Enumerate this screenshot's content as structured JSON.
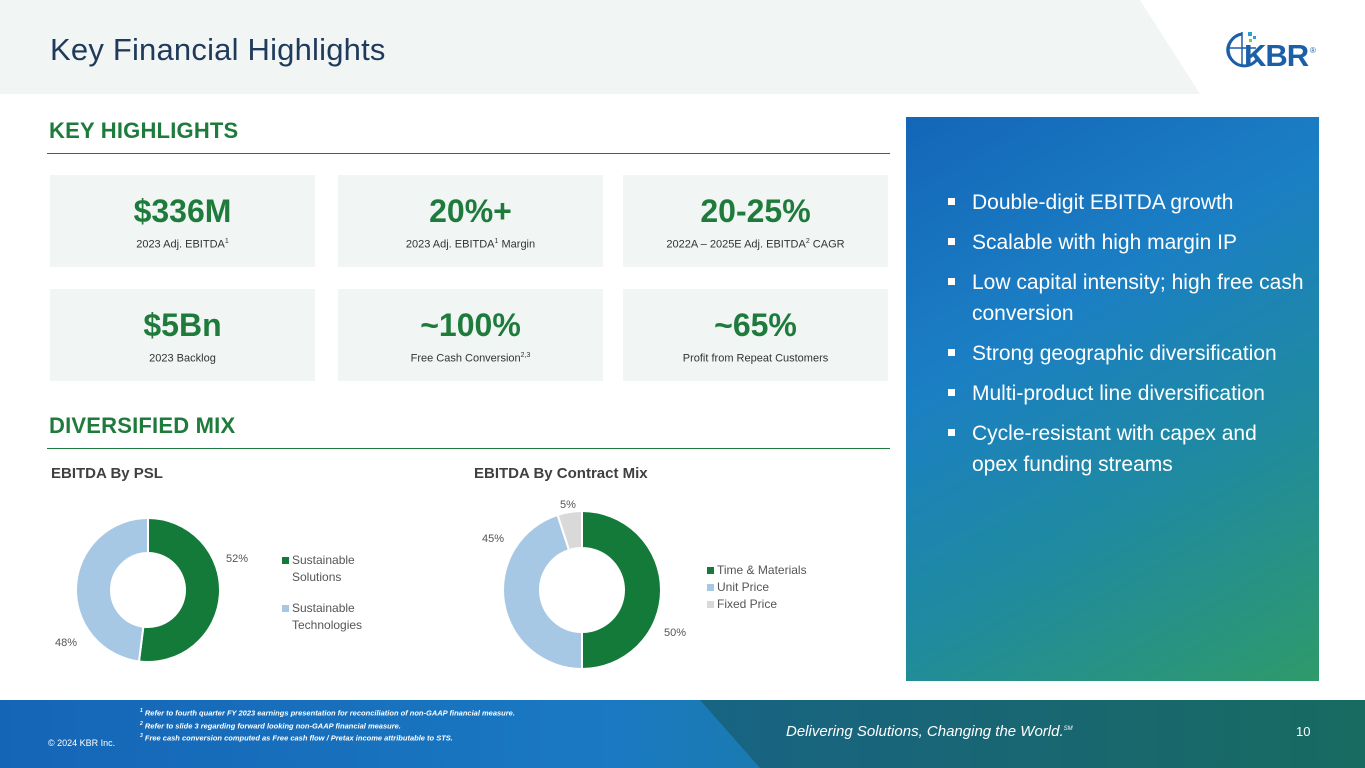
{
  "header": {
    "title": "Key Financial Highlights"
  },
  "logo": {
    "text": "KBR",
    "mark": "®"
  },
  "sections": {
    "highlights": "KEY HIGHLIGHTS",
    "mix": "DIVERSIFIED MIX"
  },
  "kpis": [
    {
      "value": "$336M",
      "label": "2023 Adj. EBITDA",
      "sup": "1",
      "label_tail": ""
    },
    {
      "value": "20%+",
      "label": "2023 Adj. EBITDA",
      "sup": "1",
      "label_tail": " Margin"
    },
    {
      "value": "20-25%",
      "label": "2022A – 2025E Adj. EBITDA",
      "sup": "2",
      "label_tail": " CAGR"
    },
    {
      "value": "$5Bn",
      "label": "2023 Backlog",
      "sup": "",
      "label_tail": ""
    },
    {
      "value": "~100%",
      "label": "Free Cash Conversion",
      "sup": "2,3",
      "label_tail": ""
    },
    {
      "value": "~65%",
      "label": "Profit from Repeat Customers",
      "sup": "",
      "label_tail": ""
    }
  ],
  "chart_data": [
    {
      "type": "pie",
      "title": "EBITDA By PSL",
      "categories": [
        "Sustainable Solutions",
        "Sustainable Technologies"
      ],
      "values": [
        52,
        48
      ],
      "value_labels": [
        "52%",
        "48%"
      ],
      "colors": [
        "#137a3a",
        "#a6c8e4"
      ],
      "legend_position": "right"
    },
    {
      "type": "pie",
      "title": "EBITDA By Contract Mix",
      "categories": [
        "Time & Materials",
        "Unit Price",
        "Fixed Price"
      ],
      "values": [
        50,
        45,
        5
      ],
      "value_labels": [
        "50%",
        "45%",
        "5%"
      ],
      "colors": [
        "#137a3a",
        "#a6c8e4",
        "#d9d9d9"
      ],
      "legend_position": "right"
    }
  ],
  "bullets": [
    "Double-digit EBITDA growth",
    "Scalable with high margin IP",
    "Low capital intensity; high free cash conversion",
    "Strong geographic diversification",
    "Multi-product line diversification",
    "Cycle-resistant with capex and opex funding streams"
  ],
  "footer": {
    "footnotes": [
      {
        "sup": "1",
        "text": " Refer to fourth quarter FY 2023 earnings presentation for reconciliation of non-GAAP financial measure."
      },
      {
        "sup": "2",
        "text": " Refer to slide 3 regarding forward looking non-GAAP financial measure."
      },
      {
        "sup": "3",
        "text": " Free cash conversion computed as Free cash flow / Pretax income attributable to STS."
      }
    ],
    "copyright": "© 2024 KBR Inc.",
    "tagline": "Delivering Solutions, Changing the World.",
    "tagline_mark": "SM",
    "page_number": "10"
  }
}
